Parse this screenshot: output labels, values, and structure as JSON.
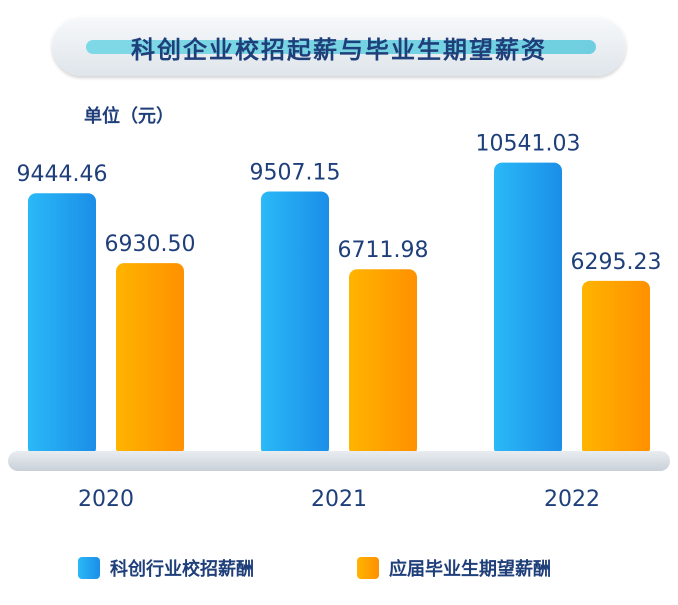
{
  "title": "科创企业校招起薪与毕业生期望薪资",
  "unit": "单位（元）",
  "colors": {
    "blue": "#1fa6f2",
    "orange": "#ff9f00",
    "text": "#1f3f7a"
  },
  "chart_data": {
    "type": "bar",
    "categories": [
      "2020",
      "2021",
      "2022"
    ],
    "series": [
      {
        "name": "科创行业校招薪酬",
        "values": [
          9444.46,
          9507.15,
          10541.03
        ],
        "labels": [
          "9444.46",
          "9507.15",
          "10541.03"
        ]
      },
      {
        "name": "应届毕业生期望薪酬",
        "values": [
          6930.5,
          6711.98,
          6295.23
        ],
        "labels": [
          "6930.50",
          "6711.98",
          "6295.23"
        ]
      }
    ],
    "ylim": [
      0,
      11500
    ],
    "grid": false,
    "legend": "bottom"
  }
}
